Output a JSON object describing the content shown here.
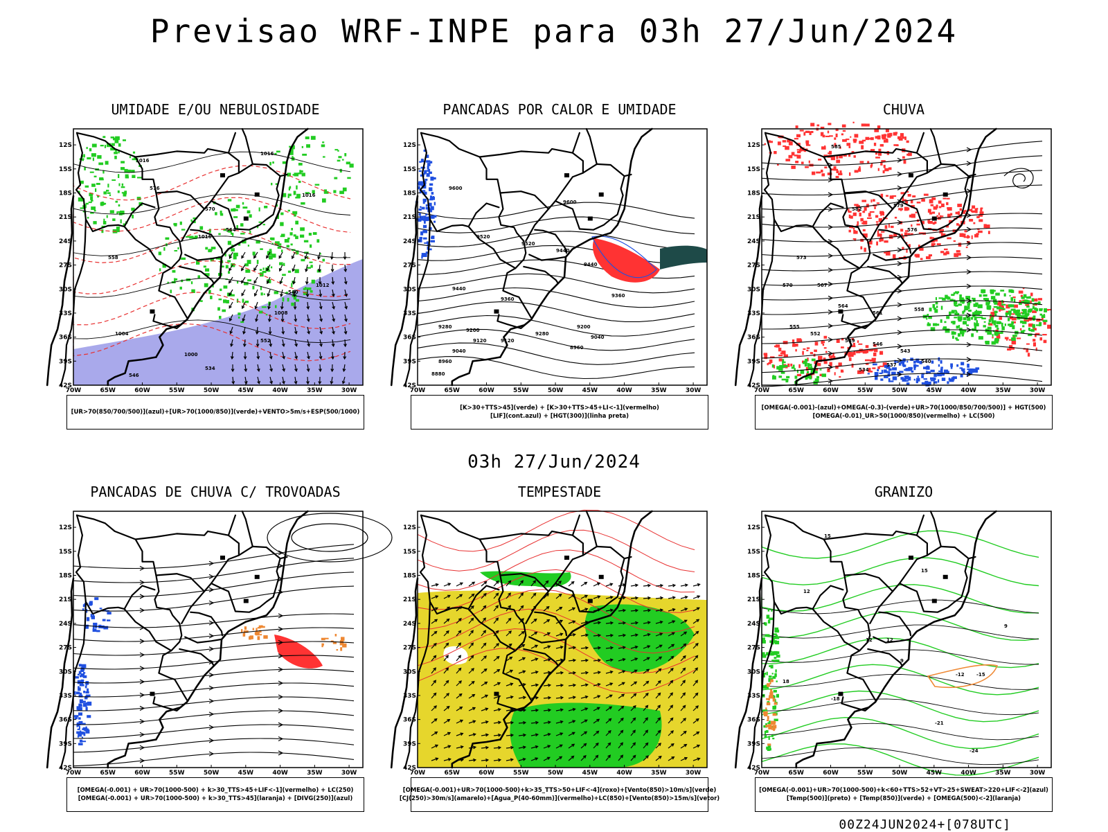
{
  "title": "Previsao WRF-INPE  para 03h 27/Jun/2024",
  "subtitle_time": "03h 27/Jun/2024",
  "footer": "00Z24JUN2024+[078UTC]",
  "axes": {
    "lat_labels": [
      "12S",
      "15S",
      "18S",
      "21S",
      "24S",
      "27S",
      "30S",
      "33S",
      "36S",
      "39S",
      "42S"
    ],
    "lon_labels": [
      "70W",
      "65W",
      "60W",
      "55W",
      "50W",
      "45W",
      "40W",
      "35W",
      "30W"
    ]
  },
  "colors": {
    "blue_humidity": "#9a9ae8",
    "green": "#22cc22",
    "red": "#ff3333",
    "navy": "#2a3b8f",
    "dark_teal": "#1e4a48",
    "yellow": "#e6d62c",
    "orange": "#ee8833",
    "contour_red": "#e83030",
    "blue": "#2050e0"
  },
  "panels": [
    {
      "id": "umidade",
      "title": "UMIDADE E/OU NEBULOSIDADE",
      "legend": [
        "[UR>70(850/700/500)](azul)+[UR>70(1000/850)](verde)+VENTO>5m/s+ESP(500/1000)"
      ],
      "contour_labels": [
        "1016",
        "1016",
        "1016",
        "1016",
        "1012",
        "1008",
        "1004",
        "1000",
        "576",
        "570",
        "564",
        "558",
        "552",
        "546",
        "540",
        "534"
      ]
    },
    {
      "id": "pancadas-calor",
      "title": "PANCADAS POR CALOR E UMIDADE",
      "legend": [
        "[K>30+TTS>45](verde) + [K>30+TTS>45+LI<-1](vermelho)",
        "[LIF](cont.azul) + [HGT(300)](linha preta)"
      ],
      "contour_labels": [
        "9600",
        "9600",
        "9520",
        "9520",
        "9440",
        "9440",
        "9440",
        "9360",
        "9360",
        "9280",
        "9280",
        "9200",
        "9200",
        "9120",
        "9120",
        "9040",
        "9040",
        "8960",
        "8960",
        "8880"
      ]
    },
    {
      "id": "chuva",
      "title": "CHUVA",
      "legend": [
        "[OMEGA(-0.001)-(azul)+OMEGA(-0.3)-(verde)+UR>70(1000/850/700/500)] + HGT(500)",
        "[OMEGA(-0.01)_UR>50(1000/850)(vermelho) + LC(500)"
      ],
      "contour_labels": [
        "585",
        "582",
        "579",
        "576",
        "573",
        "570",
        "567",
        "564",
        "561",
        "558",
        "555",
        "552",
        "549",
        "546",
        "543",
        "540",
        "537",
        "534"
      ]
    },
    {
      "id": "trovoadas",
      "title": "PANCADAS DE CHUVA C/ TROVOADAS",
      "legend": [
        "[OMEGA(-0.001) + UR>70(1000-500) + k>30_TTS>45+LIF<-1](vermelho) + LC(250)",
        "[OMEGA(-0.001) + UR>70(1000-500) + k>30_TTS>45](laranja) + [DIVG(250)](azul)"
      ],
      "contour_labels": []
    },
    {
      "id": "tempestade",
      "title": "TEMPESTADE",
      "legend": [
        "[OMEGA(-0.001)+UR>70(1000-500)+k>35_TTS>50+LIF<-4](roxo)+[Vento(850)>10m/s](verde)",
        "[CJ(250)>30m/s](amarelo)+[Agua_P(40-60mm)](vermelho)+LC(850)+[Vento(850)>15m/s](vetor)"
      ],
      "contour_labels": []
    },
    {
      "id": "granizo",
      "title": "GRANIZO",
      "legend": [
        "[OMEGA(-0.001)+UR>70(1000-500)+k<60+TTS>52+VT>25+SWEAT>220+LIF<-2](azul)",
        "[Temp(500)](preto) + [Temp(850)](verde) + [OMEGA(500)<-2](laranja)"
      ],
      "contour_labels": [
        "15",
        "12",
        "12",
        "9",
        "18",
        "-15",
        "-18",
        "-21",
        "-24",
        "15",
        "12",
        "9",
        "-12"
      ]
    }
  ]
}
